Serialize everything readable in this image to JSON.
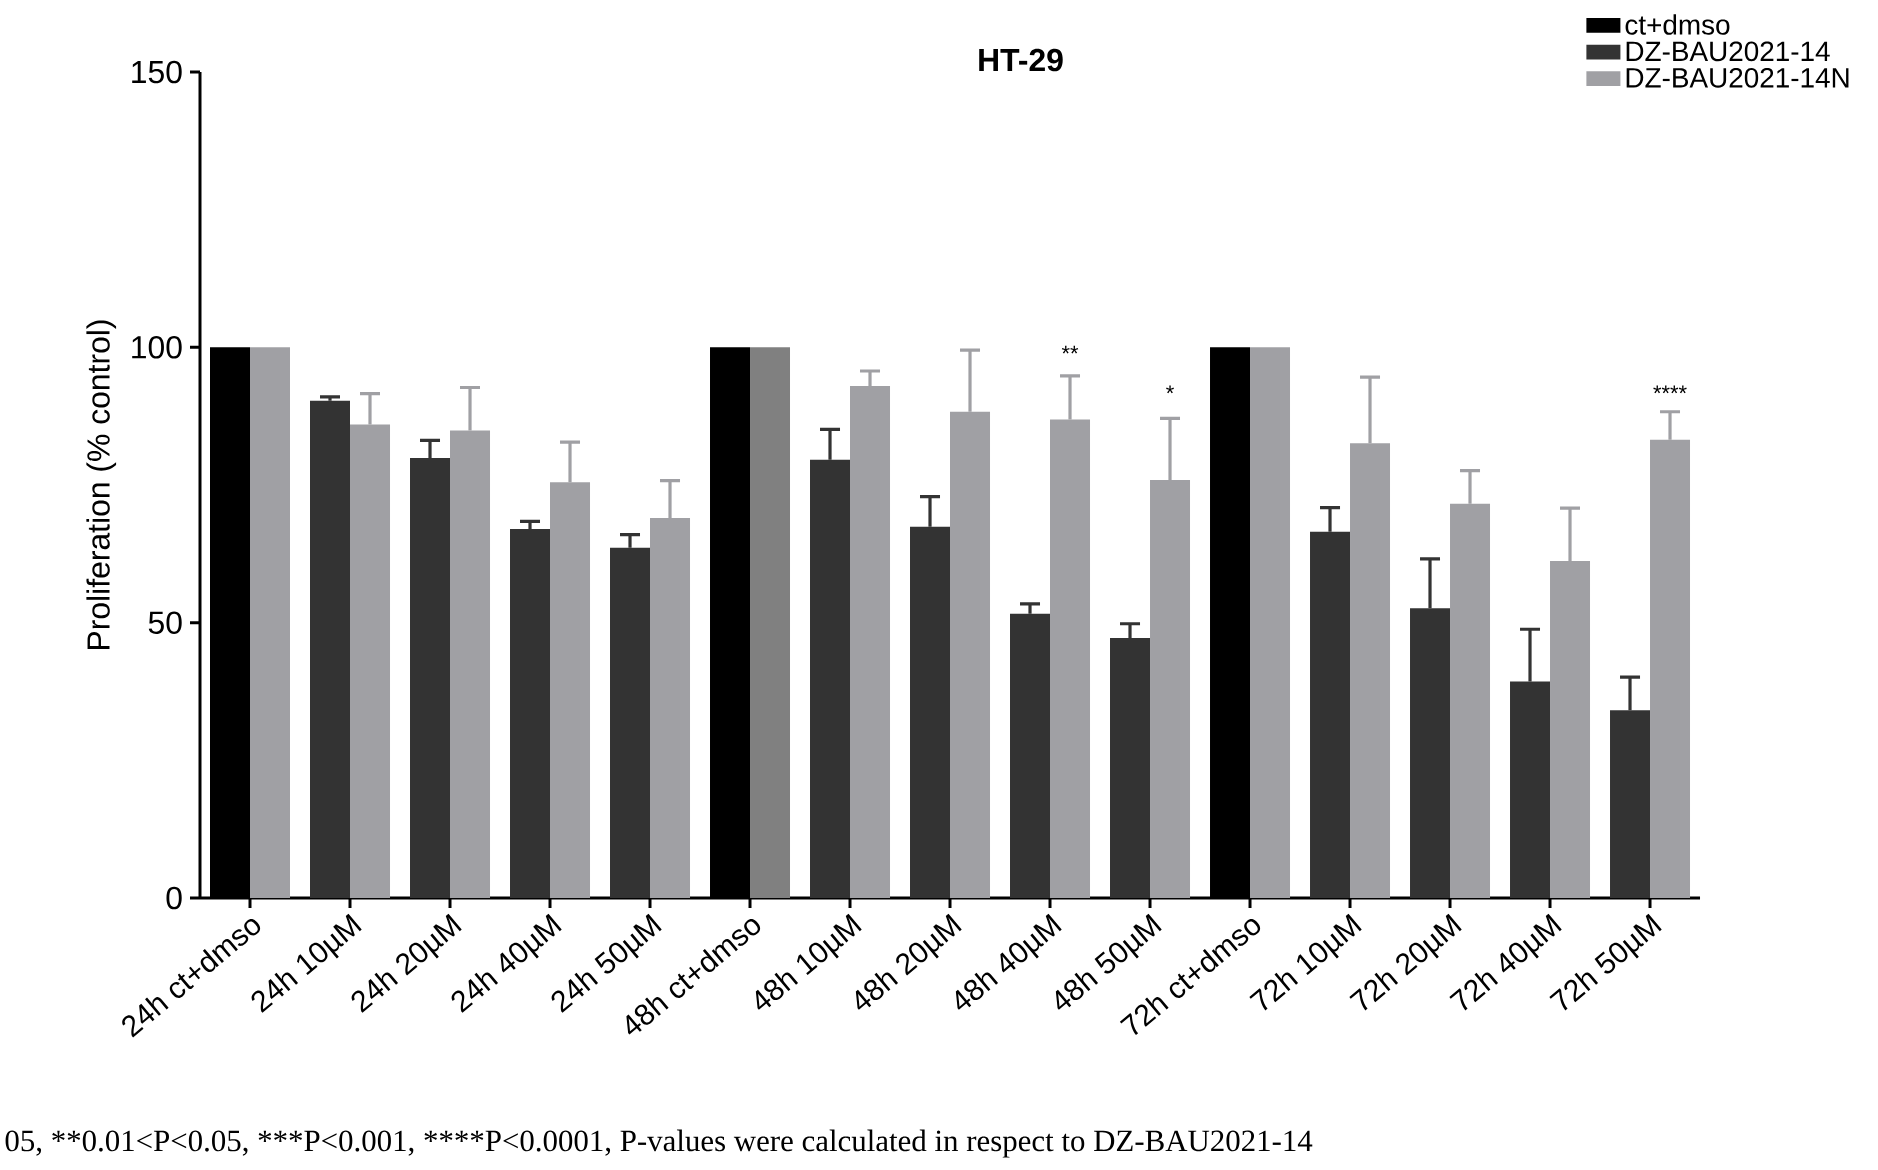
{
  "chart_data": {
    "type": "bar",
    "title": "HT-29",
    "ylabel": "Proliferation (% control)",
    "categories": [
      "24h ct+dmso",
      "24h 10µM",
      "24h 20µM",
      "24h 40µM",
      "24h 50µM",
      "48h ct+dmso",
      "48h 10µM",
      "48h 20µM",
      "48h 40µM",
      "48h 50µM",
      "72h ct+dmso",
      "72h 10µM",
      "72h 20µM",
      "72h 40µM",
      "72h 50µM"
    ],
    "series": [
      {
        "name": "ct+dmso",
        "color": "#000000",
        "values": [
          100,
          null,
          null,
          null,
          null,
          100,
          null,
          null,
          null,
          null,
          100,
          null,
          null,
          null,
          null
        ]
      },
      {
        "name": "DZ-BAU2021-14",
        "color": "#333333",
        "values": [
          null,
          90.3,
          79.9,
          67.0,
          63.6,
          null,
          79.6,
          67.4,
          51.6,
          47.2,
          null,
          66.5,
          52.6,
          39.3,
          34.1
        ],
        "errors": [
          null,
          0.7,
          3.2,
          1.4,
          2.4,
          null,
          5.5,
          5.5,
          1.8,
          2.6,
          null,
          4.4,
          9.0,
          9.5,
          6.0
        ]
      },
      {
        "name": "DZ-BAU2021-14N",
        "color": "#a0a0a4",
        "colors": [
          "#a0a0a4",
          "#a0a0a4",
          "#a0a0a4",
          "#a0a0a4",
          "#a0a0a4",
          "#808080",
          "#a0a0a4",
          "#a0a0a4",
          "#a0a0a4",
          "#a0a0a4",
          "#a0a0a4",
          "#a0a0a4",
          "#a0a0a4",
          "#a0a0a4",
          "#a0a0a4"
        ],
        "values": [
          100,
          86.0,
          84.9,
          75.5,
          69.0,
          100,
          93.0,
          88.3,
          86.9,
          75.9,
          100,
          82.6,
          71.6,
          61.2,
          83.2
        ],
        "errors": [
          null,
          5.6,
          7.8,
          7.3,
          6.8,
          null,
          2.7,
          11.2,
          7.9,
          11.2,
          null,
          12.0,
          6.0,
          9.6,
          5.1
        ]
      }
    ],
    "ylim": [
      0,
      150
    ],
    "yticks": [
      0,
      50,
      100,
      150
    ],
    "legend": "top right",
    "annotations": [
      "**",
      "*",
      "****",
      "05, **0.01<P<0.05, ***P<0.001, ****P<0.0001, P-values were calculated in respect to DZ-BAU2021-14"
    ]
  }
}
